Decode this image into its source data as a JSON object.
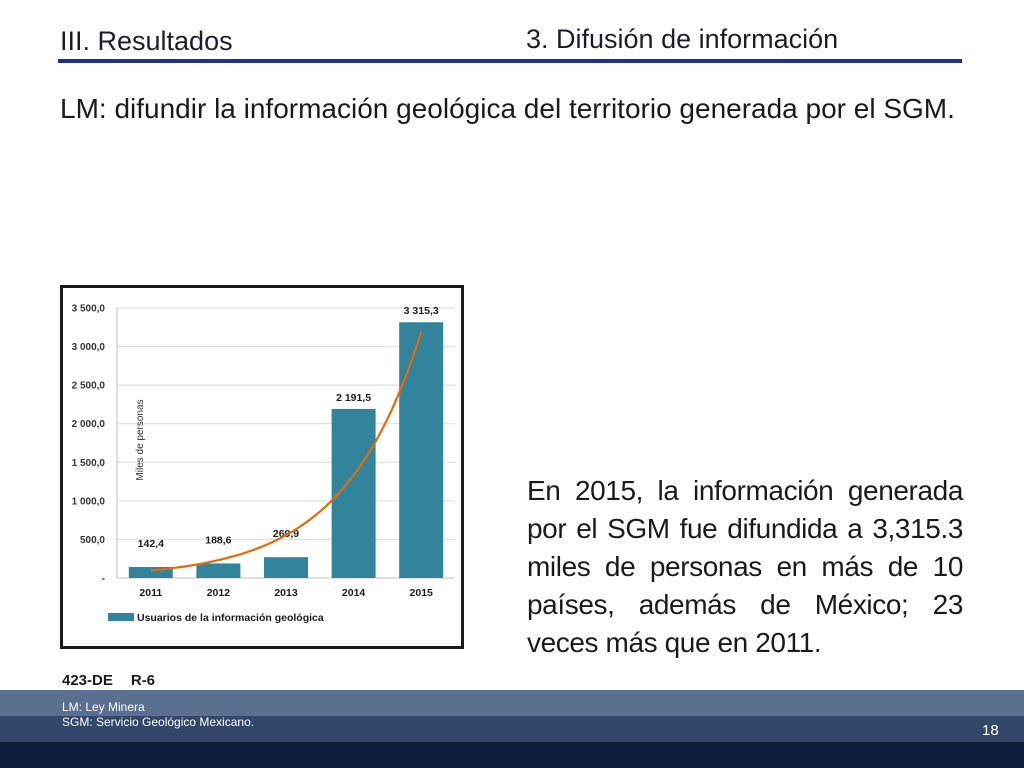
{
  "header": {
    "section": "III. Resultados",
    "subsection": "3. Difusión de información"
  },
  "lead": "LM: difundir la información geológica del territorio generada por el SGM.",
  "chart_data": {
    "type": "bar",
    "categories": [
      "2011",
      "2012",
      "2013",
      "2014",
      "2015"
    ],
    "series": [
      {
        "name": "Usuarios de la información geológica",
        "values": [
          142.4,
          188.6,
          269.9,
          2191.5,
          3315.3
        ]
      }
    ],
    "data_labels": [
      "142,4",
      "188,6",
      "269,9",
      "2 191,5",
      "3 315,3"
    ],
    "ylabel": "Miles de personas",
    "ylim": [
      0,
      3500
    ],
    "yticks": [
      0,
      500,
      1000,
      1500,
      2000,
      2500,
      3000,
      3500
    ],
    "ytick_labels": [
      "-",
      "500,0",
      "1 000,0",
      "1 500,0",
      "2 000,0",
      "2 500,0",
      "3 000,0",
      "3 500,0"
    ],
    "trendline": "exponential",
    "grid": true,
    "legend_position": "bottom-left",
    "colors": {
      "bar": "#31849b",
      "trend": "#e36c09"
    }
  },
  "body_text": "En 2015, la información generada por el SGM fue difundida a 3,315.3 miles de personas en más de 10 países, además de México; 23 veces más que en 2011.",
  "reference": {
    "code": "423-DE",
    "rec": "R-6"
  },
  "footer": {
    "notes": [
      "LM: Ley Minera",
      "SGM: Servicio Geológico Mexicano."
    ],
    "page": "18"
  }
}
